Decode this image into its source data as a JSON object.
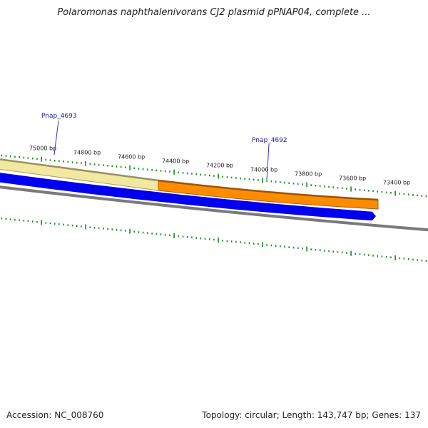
{
  "header": {
    "title": "Polaromonas naphthalenivorans CJ2 plasmid pPNAP04, complete ..."
  },
  "footer": {
    "accession": "Accession: NC_008760",
    "topology": "Topology: circular; Length: 143,747 bp; Genes: 137"
  },
  "map": {
    "ruler_labels": [
      "75000 bp",
      "74800 bp",
      "74600 bp",
      "74400 bp",
      "74200 bp",
      "74000 bp",
      "73800 bp",
      "73600 bp",
      "73400 bp"
    ],
    "genes": [
      {
        "name": "Pnap_4693",
        "strand": "reverse",
        "start_bp": 74411,
        "end_bp": 75300
      },
      {
        "name": "Pnap_4692",
        "strand": "reverse",
        "start_bp": 73440,
        "end_bp": 74411
      }
    ],
    "colors": {
      "gene_pale": "#f1e9a0",
      "gene_pale_edge": "#a89f57",
      "gene_orange": "#ff8c00",
      "gene_orange_edge": "#b35a00",
      "cds_blue": "#0000ee",
      "backbone": "#808080",
      "tick": "#138a13",
      "gene_label": "#1a1aa6"
    },
    "icons": [
      "gene-label-line",
      "ruler-tick"
    ]
  }
}
